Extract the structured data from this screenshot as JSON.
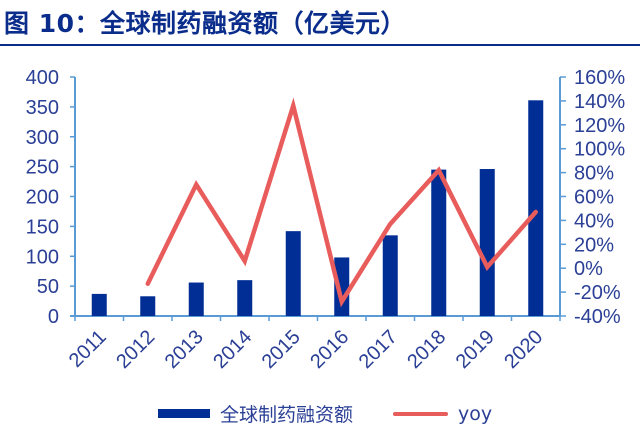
{
  "title": "图 10：全球制药融资额（亿美元）",
  "chart_data": {
    "type": "bar+line",
    "title": "图 10：全球制药融资额（亿美元）",
    "categories": [
      "2011",
      "2012",
      "2013",
      "2014",
      "2015",
      "2016",
      "2017",
      "2018",
      "2019",
      "2020"
    ],
    "series": [
      {
        "name": "全球制药融资额",
        "type": "bar",
        "axis": "left",
        "color": "#002e94",
        "values": [
          37,
          33,
          56,
          60,
          142,
          98,
          135,
          245,
          246,
          361
        ]
      },
      {
        "name": "yoy",
        "type": "line",
        "axis": "right",
        "color": "#e85c5c",
        "values": [
          null,
          -13,
          70,
          6,
          136,
          -28,
          37,
          82,
          1,
          47
        ]
      }
    ],
    "left_axis": {
      "ylim": [
        0,
        400
      ],
      "ticks": [
        "0",
        "50",
        "100",
        "150",
        "200",
        "250",
        "300",
        "350",
        "400"
      ]
    },
    "right_axis": {
      "ylim": [
        -40,
        160
      ],
      "ticks": [
        "-40%",
        "-20%",
        "0%",
        "20%",
        "40%",
        "60%",
        "80%",
        "100%",
        "120%",
        "140%",
        "160%"
      ]
    },
    "xlabel": "",
    "ylabel": "",
    "grid": false,
    "legend_position": "bottom"
  },
  "legend": {
    "bar_label": "全球制药融资额",
    "line_label": "yoy"
  }
}
